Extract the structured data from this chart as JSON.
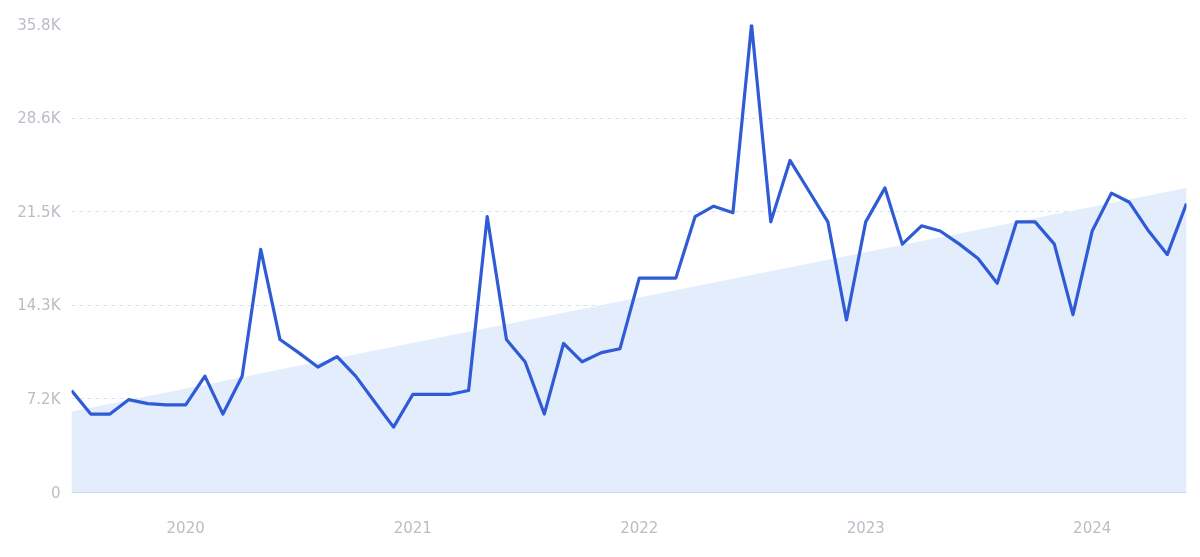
{
  "chart_data": {
    "type": "line",
    "x": [
      "2019-07",
      "2019-08",
      "2019-09",
      "2019-10",
      "2019-11",
      "2019-12",
      "2020-01",
      "2020-02",
      "2020-03",
      "2020-04",
      "2020-05",
      "2020-06",
      "2020-07",
      "2020-08",
      "2020-09",
      "2020-10",
      "2020-11",
      "2020-12",
      "2021-01",
      "2021-02",
      "2021-03",
      "2021-04",
      "2021-05",
      "2021-06",
      "2021-07",
      "2021-08",
      "2021-09",
      "2021-10",
      "2021-11",
      "2021-12",
      "2022-01",
      "2022-02",
      "2022-03",
      "2022-04",
      "2022-05",
      "2022-06",
      "2022-07",
      "2022-08",
      "2022-09",
      "2022-10",
      "2022-11",
      "2022-12",
      "2023-01",
      "2023-02",
      "2023-03",
      "2023-04",
      "2023-05",
      "2023-06",
      "2023-07",
      "2023-08",
      "2023-09",
      "2023-10",
      "2023-11",
      "2023-12",
      "2024-01",
      "2024-02",
      "2024-03",
      "2024-04",
      "2024-05",
      "2024-06"
    ],
    "series": [
      {
        "type": "area",
        "color": "#e3edfb",
        "x": [
          "2019-07",
          "2024-06"
        ],
        "values": [
          6.2,
          23.3
        ]
      },
      {
        "color": "#2f5bd6",
        "values": [
          7.8,
          6.0,
          6.0,
          7.1,
          6.8,
          6.7,
          6.7,
          8.9,
          6.0,
          8.9,
          18.6,
          11.7,
          10.7,
          9.6,
          10.4,
          8.9,
          6.9,
          5.0,
          7.5,
          7.5,
          7.5,
          7.8,
          21.1,
          11.7,
          10.0,
          6.0,
          11.4,
          10.0,
          10.7,
          11.0,
          16.4,
          16.4,
          16.4,
          21.1,
          21.9,
          21.4,
          35.8,
          20.7,
          25.4,
          23.1,
          20.7,
          13.2,
          20.7,
          23.3,
          19.0,
          20.4,
          20.0,
          19.0,
          17.9,
          16.0,
          20.7,
          20.7,
          19.0,
          13.6,
          20.0,
          22.9,
          22.2,
          20.0,
          18.2,
          22.1
        ]
      }
    ],
    "xlim": [
      "2019-07",
      "2024-06"
    ],
    "xticks": [
      "2020",
      "2021",
      "2022",
      "2023",
      "2024"
    ],
    "ylim": [
      0,
      35.8
    ],
    "yticks": [
      0,
      {
        "value": 7.16,
        "label": "7.2K"
      },
      {
        "value": 14.32,
        "label": "14.3K"
      },
      {
        "value": 21.48,
        "label": "21.5K"
      },
      {
        "value": 28.64,
        "label": "28.6K"
      },
      {
        "value": 35.8,
        "label": "35.8K"
      }
    ],
    "grid": "y",
    "line_style": "solid",
    "marker": "none"
  }
}
